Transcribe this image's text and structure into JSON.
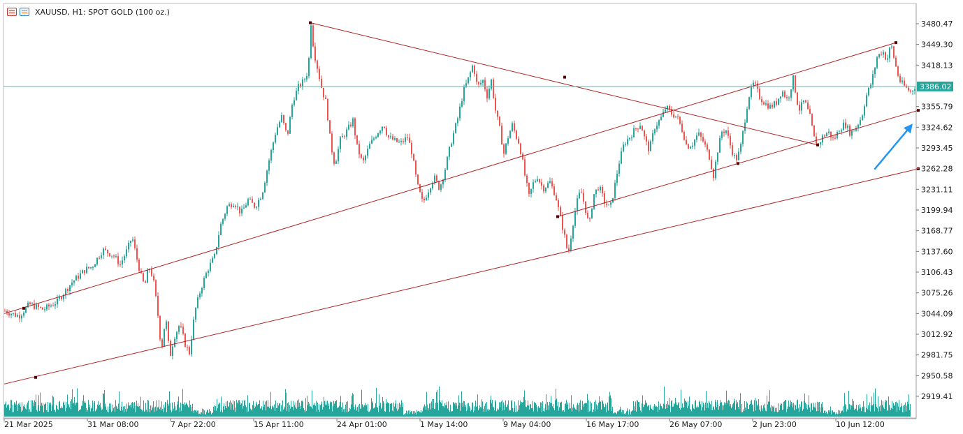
{
  "window": {
    "title": "XAUUSD, H1:  SPOT GOLD (100 oz.)",
    "icons": [
      "chart-table-icon",
      "chart-settings-icon"
    ]
  },
  "colors": {
    "bull": "#26a69a",
    "bear": "#ef5350",
    "volume": "#26a69a",
    "trendline": "#b22222",
    "price_line": "#5cb8b2",
    "price_label_bg": "#26a69a",
    "arrow": "#2196f3"
  },
  "chart_data": {
    "type": "candlestick",
    "symbol": "XAUUSD",
    "timeframe": "H1",
    "title": "XAUUSD, H1:  SPOT GOLD (100 oz.)",
    "current_price": "3386.02",
    "y_ticks": [
      "3480.47",
      "3449.30",
      "3418.13",
      "3386.02",
      "3355.79",
      "3324.62",
      "3293.45",
      "3262.28",
      "3231.11",
      "3199.94",
      "3168.77",
      "3137.60",
      "3106.43",
      "3075.26",
      "3044.09",
      "3012.92",
      "2981.75",
      "2950.58",
      "2919.41"
    ],
    "ylim": [
      2919.41,
      3480.47
    ],
    "x_ticks": [
      "21 Mar 2025",
      "31 Mar 08:00",
      "7 Apr 22:00",
      "15 Apr 11:00",
      "24 Apr 01:00",
      "1 May 14:00",
      "9 May 04:00",
      "16 May 17:00",
      "26 May 07:00",
      "2 Jun 23:00",
      "10 Jun 12:00"
    ],
    "price_path": [
      [
        0,
        3048
      ],
      [
        20,
        3040
      ],
      [
        35,
        3058
      ],
      [
        55,
        3050
      ],
      [
        75,
        3062
      ],
      [
        95,
        3090
      ],
      [
        115,
        3110
      ],
      [
        125,
        3115
      ],
      [
        140,
        3140
      ],
      [
        155,
        3132
      ],
      [
        165,
        3118
      ],
      [
        175,
        3140
      ],
      [
        182,
        3160
      ],
      [
        188,
        3130
      ],
      [
        195,
        3100
      ],
      [
        200,
        3085
      ],
      [
        206,
        3115
      ],
      [
        212,
        3098
      ],
      [
        218,
        3052
      ],
      [
        224,
        2988
      ],
      [
        230,
        3040
      ],
      [
        236,
        2978
      ],
      [
        242,
        3008
      ],
      [
        250,
        3028
      ],
      [
        258,
        2998
      ],
      [
        264,
        2985
      ],
      [
        272,
        3048
      ],
      [
        280,
        3080
      ],
      [
        290,
        3110
      ],
      [
        300,
        3130
      ],
      [
        308,
        3175
      ],
      [
        318,
        3205
      ],
      [
        328,
        3212
      ],
      [
        338,
        3195
      ],
      [
        348,
        3215
      ],
      [
        358,
        3205
      ],
      [
        368,
        3225
      ],
      [
        378,
        3275
      ],
      [
        388,
        3320
      ],
      [
        396,
        3340
      ],
      [
        404,
        3310
      ],
      [
        412,
        3365
      ],
      [
        420,
        3385
      ],
      [
        428,
        3395
      ],
      [
        434,
        3410
      ],
      [
        438,
        3482
      ],
      [
        442,
        3440
      ],
      [
        448,
        3410
      ],
      [
        454,
        3380
      ],
      [
        460,
        3360
      ],
      [
        466,
        3300
      ],
      [
        472,
        3268
      ],
      [
        480,
        3305
      ],
      [
        490,
        3320
      ],
      [
        498,
        3335
      ],
      [
        504,
        3295
      ],
      [
        512,
        3270
      ],
      [
        522,
        3298
      ],
      [
        532,
        3315
      ],
      [
        542,
        3330
      ],
      [
        548,
        3310
      ],
      [
        556,
        3305
      ],
      [
        566,
        3300
      ],
      [
        576,
        3310
      ],
      [
        582,
        3288
      ],
      [
        590,
        3238
      ],
      [
        598,
        3210
      ],
      [
        606,
        3230
      ],
      [
        614,
        3250
      ],
      [
        622,
        3232
      ],
      [
        630,
        3262
      ],
      [
        638,
        3300
      ],
      [
        648,
        3338
      ],
      [
        656,
        3378
      ],
      [
        664,
        3400
      ],
      [
        670,
        3420
      ],
      [
        676,
        3385
      ],
      [
        684,
        3395
      ],
      [
        690,
        3372
      ],
      [
        696,
        3395
      ],
      [
        702,
        3350
      ],
      [
        708,
        3322
      ],
      [
        714,
        3285
      ],
      [
        720,
        3310
      ],
      [
        726,
        3328
      ],
      [
        732,
        3310
      ],
      [
        736,
        3300
      ],
      [
        740,
        3278
      ],
      [
        744,
        3252
      ],
      [
        750,
        3220
      ],
      [
        756,
        3240
      ],
      [
        762,
        3250
      ],
      [
        770,
        3232
      ],
      [
        780,
        3242
      ],
      [
        788,
        3222
      ],
      [
        794,
        3192
      ],
      [
        800,
        3165
      ],
      [
        806,
        3132
      ],
      [
        812,
        3175
      ],
      [
        818,
        3210
      ],
      [
        824,
        3230
      ],
      [
        830,
        3205
      ],
      [
        836,
        3175
      ],
      [
        842,
        3222
      ],
      [
        850,
        3236
      ],
      [
        858,
        3212
      ],
      [
        866,
        3202
      ],
      [
        872,
        3232
      ],
      [
        878,
        3268
      ],
      [
        886,
        3300
      ],
      [
        894,
        3310
      ],
      [
        902,
        3322
      ],
      [
        910,
        3330
      ],
      [
        916,
        3305
      ],
      [
        922,
        3290
      ],
      [
        930,
        3325
      ],
      [
        940,
        3340
      ],
      [
        946,
        3355
      ],
      [
        954,
        3345
      ],
      [
        962,
        3340
      ],
      [
        970,
        3318
      ],
      [
        976,
        3295
      ],
      [
        984,
        3300
      ],
      [
        992,
        3315
      ],
      [
        1000,
        3302
      ],
      [
        1008,
        3280
      ],
      [
        1014,
        3252
      ],
      [
        1020,
        3290
      ],
      [
        1026,
        3318
      ],
      [
        1032,
        3320
      ],
      [
        1040,
        3290
      ],
      [
        1046,
        3275
      ],
      [
        1052,
        3290
      ],
      [
        1058,
        3330
      ],
      [
        1064,
        3370
      ],
      [
        1072,
        3392
      ],
      [
        1080,
        3370
      ],
      [
        1088,
        3360
      ],
      [
        1096,
        3355
      ],
      [
        1104,
        3362
      ],
      [
        1112,
        3380
      ],
      [
        1120,
        3365
      ],
      [
        1128,
        3398
      ],
      [
        1136,
        3350
      ],
      [
        1144,
        3365
      ],
      [
        1152,
        3340
      ],
      [
        1158,
        3308
      ],
      [
        1164,
        3298
      ],
      [
        1170,
        3310
      ],
      [
        1178,
        3318
      ],
      [
        1186,
        3305
      ],
      [
        1194,
        3322
      ],
      [
        1202,
        3330
      ],
      [
        1210,
        3315
      ],
      [
        1218,
        3325
      ],
      [
        1226,
        3340
      ],
      [
        1232,
        3370
      ],
      [
        1240,
        3392
      ],
      [
        1248,
        3430
      ],
      [
        1256,
        3440
      ],
      [
        1262,
        3425
      ],
      [
        1268,
        3450
      ],
      [
        1274,
        3420
      ],
      [
        1280,
        3395
      ],
      [
        1288,
        3385
      ],
      [
        1296,
        3378
      ],
      [
        1304,
        3388
      ],
      [
        1308,
        3386
      ]
    ],
    "trendlines": [
      {
        "name": "descending-resistance",
        "from": [
          438,
          3482
        ],
        "to": [
          1164,
          3298
        ]
      },
      {
        "name": "upper-channel",
        "from": [
          0,
          3044
        ],
        "to": [
          1276,
          3452
        ]
      },
      {
        "name": "middle-channel",
        "from": [
          792,
          3190
        ],
        "to": [
          1308,
          3350
        ]
      },
      {
        "name": "lower-channel",
        "from": [
          0,
          2938
        ],
        "to": [
          1308,
          3262
        ]
      }
    ],
    "anchor_points": [
      [
        438,
        3482
      ],
      [
        802,
        3400
      ],
      [
        1164,
        3298
      ],
      [
        1276,
        3452
      ],
      [
        28,
        3052
      ],
      [
        45,
        2948
      ],
      [
        792,
        3190
      ],
      [
        1050,
        3270
      ],
      [
        1308,
        3350
      ],
      [
        1308,
        3262
      ]
    ],
    "annotation_arrow": {
      "from": [
        1246,
        3262
      ],
      "to": [
        1300,
        3330
      ]
    },
    "volume_profile": "hourly tick volume bars along bottom strip"
  }
}
